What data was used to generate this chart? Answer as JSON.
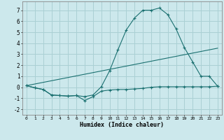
{
  "title": "",
  "xlabel": "Humidex (Indice chaleur)",
  "bg_color": "#cce8ec",
  "grid_color": "#aad0d4",
  "line_color": "#1a7070",
  "xlim": [
    -0.5,
    23.5
  ],
  "ylim": [
    -2.5,
    7.8
  ],
  "xticks": [
    0,
    1,
    2,
    3,
    4,
    5,
    6,
    7,
    8,
    9,
    10,
    11,
    12,
    13,
    14,
    15,
    16,
    17,
    18,
    19,
    20,
    21,
    22,
    23
  ],
  "yticks": [
    -2,
    -1,
    0,
    1,
    2,
    3,
    4,
    5,
    6,
    7
  ],
  "line1_x": [
    0,
    1,
    2,
    3,
    4,
    5,
    6,
    7,
    8,
    9,
    10,
    11,
    12,
    13,
    14,
    15,
    16,
    17,
    18,
    19,
    20,
    21,
    22,
    23
  ],
  "line1_y": [
    0.15,
    -0.05,
    -0.2,
    -0.7,
    -0.75,
    -0.8,
    -0.75,
    -1.2,
    -0.85,
    -0.35,
    -0.25,
    -0.2,
    -0.2,
    -0.15,
    -0.1,
    0.0,
    0.05,
    0.05,
    0.05,
    0.05,
    0.05,
    0.05,
    0.05,
    0.1
  ],
  "line2_x": [
    0,
    1,
    2,
    3,
    4,
    5,
    6,
    7,
    8,
    9,
    10,
    11,
    12,
    13,
    14,
    15,
    16,
    17,
    18,
    19,
    20,
    21,
    22,
    23
  ],
  "line2_y": [
    0.15,
    -0.05,
    -0.2,
    -0.7,
    -0.75,
    -0.8,
    -0.75,
    -0.85,
    -0.7,
    0.05,
    1.5,
    3.4,
    5.2,
    6.3,
    7.0,
    7.0,
    7.2,
    6.6,
    5.3,
    3.6,
    2.3,
    1.0,
    1.0,
    0.1
  ],
  "line3_x": [
    0,
    23
  ],
  "line3_y": [
    0.15,
    3.55
  ]
}
